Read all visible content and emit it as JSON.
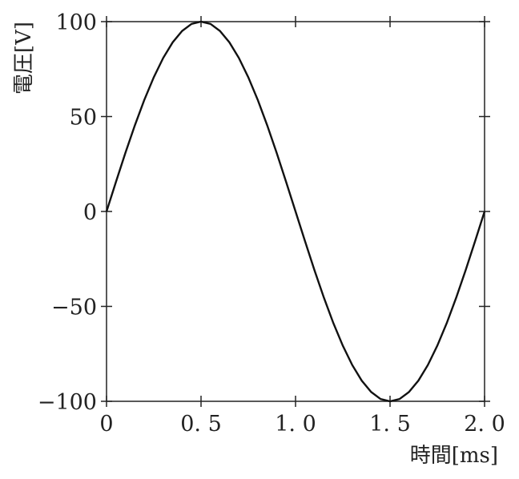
{
  "chart_data": {
    "type": "line",
    "xlabel": "時間[ms]",
    "ylabel": "電圧[V]",
    "xlim": [
      0,
      2.0
    ],
    "ylim": [
      -100,
      100
    ],
    "x_ticks": [
      0,
      0.5,
      1.0,
      1.5,
      2.0
    ],
    "x_tick_labels": [
      "0",
      "0. 5",
      "1. 0",
      "1. 5",
      "2. 0"
    ],
    "y_ticks": [
      100,
      50,
      0,
      -50,
      -100
    ],
    "y_tick_labels": [
      "100",
      "50",
      "0",
      "−50",
      "−100"
    ],
    "grid": false,
    "series": [
      {
        "x": [
          0,
          0.05,
          0.1,
          0.15,
          0.2,
          0.25,
          0.3,
          0.35,
          0.4,
          0.45,
          0.5,
          0.55,
          0.6,
          0.65,
          0.7,
          0.75,
          0.8,
          0.85,
          0.9,
          0.95,
          1.0,
          1.05,
          1.1,
          1.15,
          1.2,
          1.25,
          1.3,
          1.35,
          1.4,
          1.45,
          1.5,
          1.55,
          1.6,
          1.65,
          1.7,
          1.75,
          1.8,
          1.85,
          1.9,
          1.95,
          2.0
        ],
        "y": [
          0,
          15.6,
          30.9,
          45.4,
          58.8,
          70.7,
          80.9,
          89.1,
          95.1,
          98.8,
          100,
          98.8,
          95.1,
          89.1,
          80.9,
          70.7,
          58.8,
          45.4,
          30.9,
          15.6,
          0,
          -15.6,
          -30.9,
          -45.4,
          -58.8,
          -70.7,
          -80.9,
          -89.1,
          -95.1,
          -98.8,
          -100,
          -98.8,
          -95.1,
          -89.1,
          -80.9,
          -70.7,
          -58.8,
          -45.4,
          -30.9,
          -15.6,
          0
        ]
      }
    ]
  }
}
